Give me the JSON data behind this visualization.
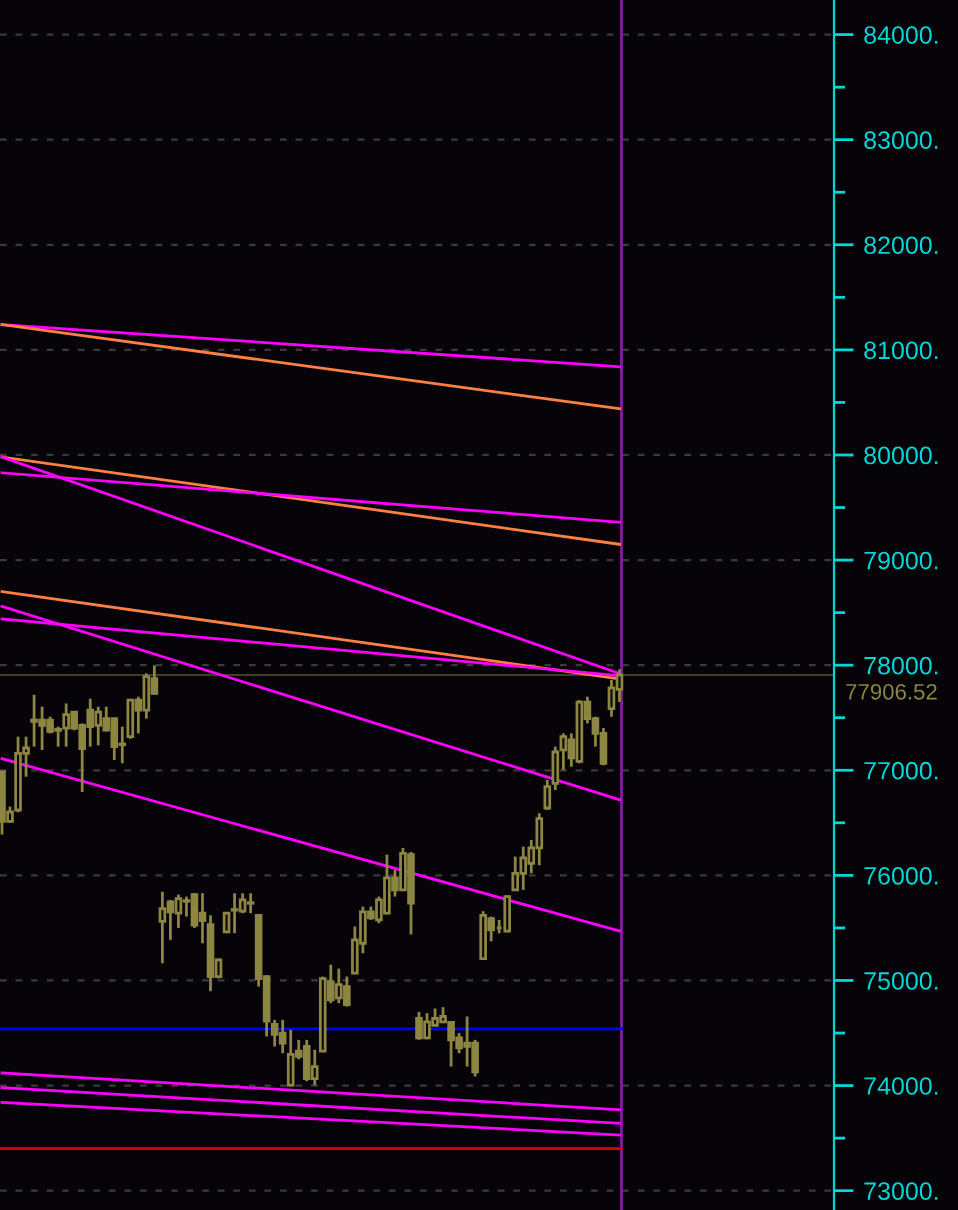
{
  "chart_data": {
    "type": "candlestick",
    "categories": [
      null,
      null,
      null,
      null,
      null,
      null,
      null,
      null,
      null,
      null,
      null,
      null,
      null,
      null,
      null,
      null,
      null,
      null,
      null,
      null,
      null,
      null,
      null,
      null,
      null,
      null,
      null,
      null,
      null,
      null,
      null,
      null,
      null,
      null,
      null,
      null,
      null,
      null,
      null,
      null,
      null,
      null,
      null,
      null,
      null,
      null,
      null,
      null,
      null,
      null,
      null,
      null,
      null,
      null,
      null,
      null,
      null,
      null,
      null,
      null,
      null,
      null,
      null,
      null,
      null,
      null,
      null,
      null,
      null,
      null,
      null,
      null,
      null,
      null,
      null,
      null,
      null,
      null,
      null,
      null,
      null,
      null,
      null,
      null,
      null,
      null,
      null,
      null,
      null,
      null,
      null,
      null,
      null,
      null,
      null,
      null,
      null,
      null,
      null,
      null,
      null,
      null,
      null,
      null
    ],
    "color": "#8c8642",
    "ohlc": [
      [
        76984,
        76990,
        76388,
        76514
      ],
      [
        76514,
        76654,
        76500,
        76603
      ],
      [
        76622,
        77320,
        76600,
        77161
      ],
      [
        77161,
        77320,
        76939,
        77212
      ],
      [
        77465,
        77719,
        77225,
        77478
      ],
      [
        77478,
        77605,
        77193,
        77428
      ],
      [
        77478,
        77510,
        77351,
        77370
      ],
      [
        77390,
        77415,
        77225,
        77380
      ],
      [
        77402,
        77636,
        77225,
        77529
      ],
      [
        77554,
        77560,
        77380,
        77402
      ],
      [
        77427,
        77446,
        76793,
        77206
      ],
      [
        77573,
        77681,
        77225,
        77415
      ],
      [
        77428,
        77605,
        77237,
        77554
      ],
      [
        77491,
        77605,
        77370,
        77383
      ],
      [
        77491,
        77500,
        77098,
        77225
      ],
      [
        77250,
        77415,
        77066,
        77243
      ],
      [
        77320,
        77680,
        77300,
        77668
      ],
      [
        77668,
        77700,
        77351,
        77573
      ],
      [
        77573,
        77922,
        77491,
        77890
      ],
      [
        77871,
        77998,
        77720,
        77732
      ],
      [
        75563,
        75843,
        75164,
        75684
      ],
      [
        75747,
        75766,
        75386,
        75652
      ],
      [
        75640,
        75817,
        75500,
        75779
      ],
      [
        75760,
        75798,
        75608,
        75754
      ],
      [
        75817,
        75830,
        75500,
        75526
      ],
      [
        75640,
        75830,
        75354,
        75570
      ],
      [
        75532,
        75620,
        74898,
        75037
      ],
      [
        75037,
        75210,
        75020,
        75196
      ],
      [
        75462,
        75650,
        75450,
        75640
      ],
      [
        75675,
        75830,
        75450,
        75669
      ],
      [
        75659,
        75830,
        75640,
        75766
      ],
      [
        75740,
        75830,
        75640,
        75735
      ],
      [
        75620,
        75630,
        74942,
        75018
      ],
      [
        75037,
        75050,
        74467,
        74613
      ],
      [
        74581,
        74625,
        74372,
        74486
      ],
      [
        74499,
        74625,
        74308,
        74404
      ],
      [
        74004,
        74530,
        73990,
        74296
      ],
      [
        74327,
        74435,
        74250,
        74277
      ],
      [
        74372,
        74435,
        74042,
        74067
      ],
      [
        74067,
        74340,
        74004,
        74181
      ],
      [
        74327,
        75037,
        74320,
        75018
      ],
      [
        74987,
        75150,
        74784,
        74816
      ],
      [
        74835,
        75113,
        74784,
        74961
      ],
      [
        74942,
        75037,
        74752,
        74771
      ],
      [
        75069,
        75513,
        75060,
        75386
      ],
      [
        75354,
        75703,
        75259,
        75652
      ],
      [
        75652,
        75703,
        75576,
        75595
      ],
      [
        75576,
        75798,
        75545,
        75766
      ],
      [
        75640,
        76197,
        75630,
        75976
      ],
      [
        75976,
        76052,
        75798,
        75862
      ],
      [
        75862,
        76261,
        75850,
        76210
      ],
      [
        76197,
        76223,
        75437,
        75735
      ],
      [
        74638,
        74701,
        74435,
        74454
      ],
      [
        74454,
        74689,
        74440,
        74606
      ],
      [
        74574,
        74733,
        74562,
        74638
      ],
      [
        74606,
        74746,
        74594,
        74657
      ],
      [
        74600,
        74610,
        74181,
        74435
      ],
      [
        74454,
        74499,
        74308,
        74359
      ],
      [
        74404,
        74657,
        74181,
        74372
      ],
      [
        74404,
        74435,
        74086,
        74131
      ],
      [
        75208,
        75659,
        75200,
        75620
      ],
      [
        75589,
        75608,
        75373,
        75481
      ],
      [
        75500,
        75576,
        75449,
        75500
      ],
      [
        75469,
        75811,
        75460,
        75798
      ],
      [
        75862,
        76178,
        75850,
        76020
      ],
      [
        76020,
        76273,
        75862,
        76166
      ],
      [
        76115,
        76337,
        76020,
        76261
      ],
      [
        76261,
        76591,
        76096,
        76540
      ],
      [
        76641,
        76908,
        76622,
        76844
      ],
      [
        76876,
        77225,
        76812,
        77174
      ],
      [
        77193,
        77351,
        77003,
        77320
      ],
      [
        77288,
        77351,
        77034,
        77117
      ],
      [
        77085,
        77668,
        77066,
        77649
      ],
      [
        77649,
        77700,
        77446,
        77491
      ],
      [
        77491,
        77510,
        77225,
        77351
      ],
      [
        77351,
        77402,
        77047,
        77066
      ],
      [
        77586,
        77859,
        77510,
        77783
      ],
      [
        77770,
        77960,
        77650,
        77906.52
      ],
      null,
      null,
      null,
      null,
      null,
      null,
      null,
      null,
      null,
      null,
      null,
      null,
      null,
      null,
      null,
      null,
      null,
      null,
      null,
      null,
      null,
      null,
      null,
      null,
      null,
      null
    ],
    "series": [
      {
        "type": "line",
        "color": "#ff00ff",
        "values": [
          81240,
          null,
          null,
          null,
          null,
          null,
          null,
          null,
          null,
          null,
          null,
          null,
          null,
          null,
          null,
          null,
          null,
          null,
          null,
          null,
          null,
          null,
          null,
          null,
          null,
          null,
          null,
          null,
          null,
          null,
          null,
          null,
          null,
          null,
          null,
          null,
          null,
          null,
          null,
          null,
          null,
          null,
          null,
          null,
          null,
          null,
          null,
          null,
          null,
          null,
          null,
          null,
          null,
          null,
          null,
          null,
          null,
          null,
          null,
          null,
          null,
          null,
          null,
          null,
          null,
          null,
          null,
          null,
          null,
          null,
          null,
          null,
          null,
          null,
          null,
          null,
          null,
          80840,
          null,
          null,
          null,
          null,
          null,
          null,
          null,
          null,
          null,
          null,
          null,
          null,
          null,
          null,
          null,
          null,
          null,
          null,
          null,
          null,
          null,
          null,
          null,
          null,
          null,
          null
        ]
      },
      {
        "type": "line",
        "color": "#ff8040",
        "values": [
          81240,
          null,
          null,
          null,
          null,
          null,
          null,
          null,
          null,
          null,
          null,
          null,
          null,
          null,
          null,
          null,
          null,
          null,
          null,
          null,
          null,
          null,
          null,
          null,
          null,
          null,
          null,
          null,
          null,
          null,
          null,
          null,
          null,
          null,
          null,
          null,
          null,
          null,
          null,
          null,
          null,
          null,
          null,
          null,
          null,
          null,
          null,
          null,
          null,
          null,
          null,
          null,
          null,
          null,
          null,
          null,
          null,
          null,
          null,
          null,
          null,
          null,
          null,
          null,
          null,
          null,
          null,
          null,
          null,
          null,
          null,
          null,
          null,
          null,
          null,
          null,
          null,
          80440,
          null,
          null,
          null,
          null,
          null,
          null,
          null,
          null,
          null,
          null,
          null,
          null,
          null,
          null,
          null,
          null,
          null,
          null,
          null,
          null,
          null,
          null,
          null,
          null,
          null,
          null
        ]
      },
      {
        "type": "line",
        "color": "#ff8040",
        "values": [
          79980,
          null,
          null,
          null,
          null,
          null,
          null,
          null,
          null,
          null,
          null,
          null,
          null,
          null,
          null,
          null,
          null,
          null,
          null,
          null,
          null,
          null,
          null,
          null,
          null,
          null,
          null,
          null,
          null,
          null,
          null,
          null,
          null,
          null,
          null,
          null,
          null,
          null,
          null,
          null,
          null,
          null,
          null,
          null,
          null,
          null,
          null,
          null,
          null,
          null,
          null,
          null,
          null,
          null,
          null,
          null,
          null,
          null,
          null,
          null,
          null,
          null,
          null,
          null,
          null,
          null,
          null,
          null,
          null,
          null,
          null,
          null,
          null,
          null,
          null,
          null,
          null,
          79150,
          null,
          null,
          null,
          null,
          null,
          null,
          null,
          null,
          null,
          null,
          null,
          null,
          null,
          null,
          null,
          null,
          null,
          null,
          null,
          null,
          null,
          null,
          null,
          null,
          null,
          null
        ]
      },
      {
        "type": "line",
        "color": "#ff00ff",
        "values": [
          79830,
          null,
          null,
          null,
          null,
          null,
          null,
          null,
          null,
          null,
          null,
          null,
          null,
          null,
          null,
          null,
          null,
          null,
          null,
          null,
          null,
          null,
          null,
          null,
          null,
          null,
          null,
          null,
          null,
          null,
          null,
          null,
          null,
          null,
          null,
          null,
          null,
          null,
          null,
          null,
          null,
          null,
          null,
          null,
          null,
          null,
          null,
          null,
          null,
          null,
          null,
          null,
          null,
          null,
          null,
          null,
          null,
          null,
          null,
          null,
          null,
          null,
          null,
          null,
          null,
          null,
          null,
          null,
          null,
          null,
          null,
          null,
          null,
          null,
          null,
          null,
          null,
          79360,
          null,
          null,
          null,
          null,
          null,
          null,
          null,
          null,
          null,
          null,
          null,
          null,
          null,
          null,
          null,
          null,
          null,
          null,
          null,
          null,
          null,
          null,
          null,
          null,
          null,
          null
        ]
      },
      {
        "type": "line",
        "color": "#ff00ff",
        "values": [
          79980,
          null,
          null,
          null,
          null,
          null,
          null,
          null,
          null,
          null,
          null,
          null,
          null,
          null,
          null,
          null,
          null,
          null,
          null,
          null,
          null,
          null,
          null,
          null,
          null,
          null,
          null,
          null,
          null,
          null,
          null,
          null,
          null,
          null,
          null,
          null,
          null,
          null,
          null,
          null,
          null,
          null,
          null,
          null,
          null,
          null,
          null,
          null,
          null,
          null,
          null,
          null,
          null,
          null,
          null,
          null,
          null,
          null,
          null,
          null,
          null,
          null,
          null,
          null,
          null,
          null,
          null,
          null,
          null,
          null,
          null,
          null,
          null,
          null,
          null,
          null,
          null,
          77920,
          null,
          null,
          null,
          null,
          null,
          null,
          null,
          null,
          null,
          null,
          null,
          null,
          null,
          null,
          null,
          null,
          null,
          null,
          null,
          null,
          null,
          null,
          null,
          null,
          null,
          null
        ]
      },
      {
        "type": "line",
        "color": "#ff8040",
        "values": [
          78700,
          null,
          null,
          null,
          null,
          null,
          null,
          null,
          null,
          null,
          null,
          null,
          null,
          null,
          null,
          null,
          null,
          null,
          null,
          null,
          null,
          null,
          null,
          null,
          null,
          null,
          null,
          null,
          null,
          null,
          null,
          null,
          null,
          null,
          null,
          null,
          null,
          null,
          null,
          null,
          null,
          null,
          null,
          null,
          null,
          null,
          null,
          null,
          null,
          null,
          null,
          null,
          null,
          null,
          null,
          null,
          null,
          null,
          null,
          null,
          null,
          null,
          null,
          null,
          null,
          null,
          null,
          null,
          null,
          null,
          null,
          null,
          null,
          null,
          null,
          null,
          null,
          77870,
          null,
          null,
          null,
          null,
          null,
          null,
          null,
          null,
          null,
          null,
          null,
          null,
          null,
          null,
          null,
          null,
          null,
          null,
          null,
          null,
          null,
          null,
          null,
          null,
          null,
          null
        ]
      },
      {
        "type": "line",
        "color": "#ff00ff",
        "values": [
          78560,
          null,
          null,
          null,
          null,
          null,
          null,
          null,
          null,
          null,
          null,
          null,
          null,
          null,
          null,
          null,
          null,
          null,
          null,
          null,
          null,
          null,
          null,
          null,
          null,
          null,
          null,
          null,
          null,
          null,
          null,
          null,
          null,
          null,
          null,
          null,
          null,
          null,
          null,
          null,
          null,
          null,
          null,
          null,
          null,
          null,
          null,
          null,
          null,
          null,
          null,
          null,
          null,
          null,
          null,
          null,
          null,
          null,
          null,
          null,
          null,
          null,
          null,
          null,
          null,
          null,
          null,
          null,
          null,
          null,
          null,
          null,
          null,
          null,
          null,
          null,
          null,
          76720,
          null,
          null,
          null,
          null,
          null,
          null,
          null,
          null,
          null,
          null,
          null,
          null,
          null,
          null,
          null,
          null,
          null,
          null,
          null,
          null,
          null,
          null,
          null,
          null,
          null,
          null
        ]
      },
      {
        "type": "line",
        "color": "#ff00ff",
        "values": [
          78440,
          null,
          null,
          null,
          null,
          null,
          null,
          null,
          null,
          null,
          null,
          null,
          null,
          null,
          null,
          null,
          null,
          null,
          null,
          null,
          null,
          null,
          null,
          null,
          null,
          null,
          null,
          null,
          null,
          null,
          null,
          null,
          null,
          null,
          null,
          null,
          null,
          null,
          null,
          null,
          null,
          null,
          null,
          null,
          null,
          null,
          null,
          null,
          null,
          null,
          null,
          null,
          null,
          null,
          null,
          null,
          null,
          null,
          null,
          null,
          null,
          null,
          null,
          null,
          null,
          null,
          null,
          null,
          null,
          null,
          null,
          null,
          null,
          null,
          null,
          null,
          null,
          77900,
          null,
          null,
          null,
          null,
          null,
          null,
          null,
          null,
          null,
          null,
          null,
          null,
          null,
          null,
          null,
          null,
          null,
          null,
          null,
          null,
          null,
          null,
          null,
          null,
          null,
          null
        ]
      },
      {
        "type": "line",
        "color": "#ff00ff",
        "values": [
          77110,
          null,
          null,
          null,
          null,
          null,
          null,
          null,
          null,
          null,
          null,
          null,
          null,
          null,
          null,
          null,
          null,
          null,
          null,
          null,
          null,
          null,
          null,
          null,
          null,
          null,
          null,
          null,
          null,
          null,
          null,
          null,
          null,
          null,
          null,
          null,
          null,
          null,
          null,
          null,
          null,
          null,
          null,
          null,
          null,
          null,
          null,
          null,
          null,
          null,
          null,
          null,
          null,
          null,
          null,
          null,
          null,
          null,
          null,
          null,
          null,
          null,
          null,
          null,
          null,
          null,
          null,
          null,
          null,
          null,
          null,
          null,
          null,
          null,
          null,
          null,
          null,
          75470,
          null,
          null,
          null,
          null,
          null,
          null,
          null,
          null,
          null,
          null,
          null,
          null,
          null,
          null,
          null,
          null,
          null,
          null,
          null,
          null,
          null,
          null,
          null,
          null,
          null,
          null
        ]
      },
      {
        "type": "line",
        "color": "#ff00ff",
        "values": [
          74120,
          null,
          null,
          null,
          null,
          null,
          null,
          null,
          null,
          null,
          null,
          null,
          null,
          null,
          null,
          null,
          null,
          null,
          null,
          null,
          null,
          null,
          null,
          null,
          null,
          null,
          null,
          null,
          null,
          null,
          null,
          null,
          null,
          null,
          null,
          null,
          null,
          null,
          null,
          null,
          null,
          null,
          null,
          null,
          null,
          null,
          null,
          null,
          null,
          null,
          null,
          null,
          null,
          null,
          null,
          null,
          null,
          null,
          null,
          null,
          null,
          null,
          null,
          null,
          null,
          null,
          null,
          null,
          null,
          null,
          null,
          null,
          null,
          null,
          null,
          null,
          null,
          73770,
          null,
          null,
          null,
          null,
          null,
          null,
          null,
          null,
          null,
          null,
          null,
          null,
          null,
          null,
          null,
          null,
          null,
          null,
          null,
          null,
          null,
          null,
          null,
          null,
          null,
          null
        ]
      },
      {
        "type": "line",
        "color": "#ff00ff",
        "values": [
          73980,
          null,
          null,
          null,
          null,
          null,
          null,
          null,
          null,
          null,
          null,
          null,
          null,
          null,
          null,
          null,
          null,
          null,
          null,
          null,
          null,
          null,
          null,
          null,
          null,
          null,
          null,
          null,
          null,
          null,
          null,
          null,
          null,
          null,
          null,
          null,
          null,
          null,
          null,
          null,
          null,
          null,
          null,
          null,
          null,
          null,
          null,
          null,
          null,
          null,
          null,
          null,
          null,
          null,
          null,
          null,
          null,
          null,
          null,
          null,
          null,
          null,
          null,
          null,
          null,
          null,
          null,
          null,
          null,
          null,
          null,
          null,
          null,
          null,
          null,
          null,
          null,
          73640,
          null,
          null,
          null,
          null,
          null,
          null,
          null,
          null,
          null,
          null,
          null,
          null,
          null,
          null,
          null,
          null,
          null,
          null,
          null,
          null,
          null,
          null,
          null,
          null,
          null,
          null
        ]
      },
      {
        "type": "line",
        "color": "#ff00ff",
        "values": [
          73840,
          null,
          null,
          null,
          null,
          null,
          null,
          null,
          null,
          null,
          null,
          null,
          null,
          null,
          null,
          null,
          null,
          null,
          null,
          null,
          null,
          null,
          null,
          null,
          null,
          null,
          null,
          null,
          null,
          null,
          null,
          null,
          null,
          null,
          null,
          null,
          null,
          null,
          null,
          null,
          null,
          null,
          null,
          null,
          null,
          null,
          null,
          null,
          null,
          null,
          null,
          null,
          null,
          null,
          null,
          null,
          null,
          null,
          null,
          null,
          null,
          null,
          null,
          null,
          null,
          null,
          null,
          null,
          null,
          null,
          null,
          null,
          null,
          null,
          null,
          null,
          null,
          73530,
          null,
          null,
          null,
          null,
          null,
          null,
          null,
          null,
          null,
          null,
          null,
          null,
          null,
          null,
          null,
          null,
          null,
          null,
          null,
          null,
          null,
          null,
          null,
          null,
          null,
          null
        ]
      }
    ],
    "ref_lines": [
      {
        "axis": "y",
        "value": 74540,
        "color": "#0000ff"
      },
      {
        "axis": "y",
        "value": 73400,
        "color": "#e00000"
      },
      {
        "axis": "y",
        "value": 77906.52,
        "label": "77906.52",
        "color": "#8c8642"
      }
    ],
    "ylim": [
      72816,
      84329
    ],
    "yticks": [
      {
        "value": 73000,
        "label": "73000."
      },
      {
        "value": 73500,
        "label": null
      },
      {
        "value": 74000,
        "label": "74000."
      },
      {
        "value": 74500,
        "label": null
      },
      {
        "value": 75000,
        "label": "75000."
      },
      {
        "value": 75500,
        "label": null
      },
      {
        "value": 76000,
        "label": "76000."
      },
      {
        "value": 76500,
        "label": null
      },
      {
        "value": 77000,
        "label": "77000."
      },
      {
        "value": 77500,
        "label": null
      },
      {
        "value": 78000,
        "label": "78000."
      },
      {
        "value": 78500,
        "label": null
      },
      {
        "value": 79000,
        "label": "79000."
      },
      {
        "value": 79500,
        "label": null
      },
      {
        "value": 80000,
        "label": "80000."
      },
      {
        "value": 80500,
        "label": null
      },
      {
        "value": 81000,
        "label": "81000."
      },
      {
        "value": 81500,
        "label": null
      },
      {
        "value": 82000,
        "label": "82000."
      },
      {
        "value": 82500,
        "label": null
      },
      {
        "value": 83000,
        "label": "83000."
      },
      {
        "value": 83500,
        "label": null
      },
      {
        "value": 84000,
        "label": "84000."
      }
    ],
    "grid": "y",
    "tick_labels": "y"
  }
}
